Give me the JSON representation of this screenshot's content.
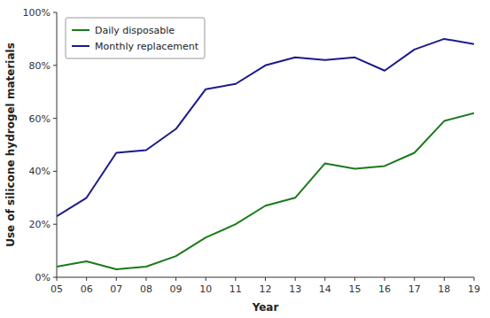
{
  "chart_data": {
    "type": "line",
    "xlabel": "Year",
    "ylabel": "Use of silicone hydrogel materials",
    "x": [
      5,
      6,
      7,
      8,
      9,
      10,
      11,
      12,
      13,
      14,
      15,
      16,
      17,
      18,
      19
    ],
    "series": [
      {
        "name": "Daily disposable",
        "color": "#1a7a1a",
        "values": [
          0.04,
          0.06,
          0.03,
          0.04,
          0.08,
          0.15,
          0.2,
          0.27,
          0.3,
          0.43,
          0.41,
          0.42,
          0.47,
          0.59,
          0.62
        ]
      },
      {
        "name": "Monthly replacement",
        "color": "#1a1a8c",
        "values": [
          0.23,
          0.3,
          0.47,
          0.48,
          0.56,
          0.71,
          0.73,
          0.8,
          0.83,
          0.82,
          0.83,
          0.78,
          0.86,
          0.9,
          0.88
        ]
      }
    ],
    "xlim": [
      5,
      19
    ],
    "xticks": [
      {
        "value": 5,
        "label": "05"
      },
      {
        "value": 6,
        "label": "06"
      },
      {
        "value": 7,
        "label": "07"
      },
      {
        "value": 8,
        "label": "08"
      },
      {
        "value": 9,
        "label": "09"
      },
      10,
      11,
      12,
      13,
      14,
      15,
      16,
      17,
      18,
      19
    ],
    "ylim": [
      0,
      1.0
    ],
    "yticks": [
      {
        "value": 0.0,
        "label": "0%"
      },
      {
        "value": 0.2,
        "label": "20%"
      },
      {
        "value": 0.4,
        "label": "40%"
      },
      {
        "value": 0.6,
        "label": "60%"
      },
      {
        "value": 0.8,
        "label": "80%"
      },
      {
        "value": 1.0,
        "label": "100%"
      }
    ],
    "legend": "upper left",
    "grid": false
  }
}
